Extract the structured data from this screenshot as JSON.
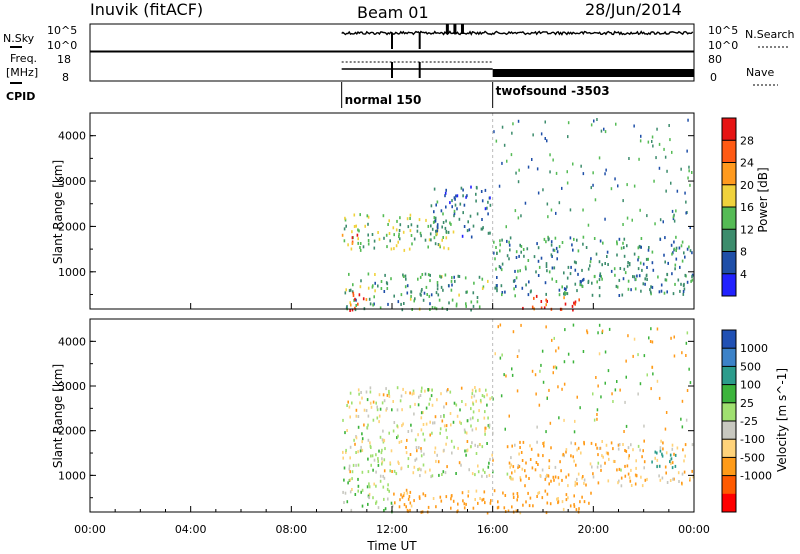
{
  "header": {
    "site": "Inuvik (fitACF)",
    "beam": "Beam 01",
    "date": "28/Jun/2014"
  },
  "top_panels": {
    "nsky_label": "N.Sky",
    "nsky_ticks": [
      "10^5",
      "10^0"
    ],
    "nsearch_label": "N.Search",
    "nsearch_ticks": [
      "10^5",
      "10^0"
    ],
    "freq_label": "Freq.",
    "freq_unit": "[MHz]",
    "freq_ticks": [
      "18",
      "8"
    ],
    "nave_label": "Nave",
    "nave_ticks": [
      "80",
      "0"
    ],
    "cpid_label": "CPID",
    "cpid_modes": [
      {
        "name": "normal 150",
        "start_hour": 10.0,
        "end_hour": 16.0
      },
      {
        "name": "twofsound -3503",
        "start_hour": 16.0,
        "end_hour": 24.0
      }
    ]
  },
  "colors": {
    "power_scale": [
      "#2222ff",
      "#1f4fa8",
      "#3c8c6c",
      "#55bb55",
      "#f0d23c",
      "#ff9a1e",
      "#ff5a14",
      "#e61414"
    ],
    "velocity_scale": [
      "#ff0000",
      "#ff5a00",
      "#ff9b19",
      "#ffd37a",
      "#c8c8c0",
      "#a0e070",
      "#3cb43c",
      "#2c9c8c",
      "#3c82c8",
      "#2050b4"
    ],
    "ground_scatter": "#b9b9b3"
  },
  "chart_data": [
    {
      "type": "heatmap",
      "title": "Power",
      "xlabel": "",
      "ylabel": "Slant Range [km]",
      "xlim": [
        0,
        24
      ],
      "ylim": [
        180,
        4500
      ],
      "y_ticks": [
        "1000",
        "2000",
        "3000",
        "4000"
      ],
      "colorbar": {
        "label": "Power [dB]",
        "min": 0,
        "max": 32,
        "ticks": [
          "4",
          "8",
          "12",
          "16",
          "20",
          "24",
          "28"
        ]
      },
      "data_start_hour": 10.0,
      "features": [
        {
          "t_start": 10.0,
          "t_end": 14.6,
          "range_low": 1500,
          "range_high": 2300,
          "power": 14
        },
        {
          "t_start": 10.0,
          "t_end": 10.6,
          "range_low": 1550,
          "range_high": 1850,
          "power": 26
        },
        {
          "t_start": 10.1,
          "t_end": 15.8,
          "range_low": 180,
          "range_high": 1000,
          "power": 12
        },
        {
          "t_start": 10.1,
          "t_end": 11.0,
          "range_low": 180,
          "range_high": 600,
          "power": 26
        },
        {
          "t_start": 17.0,
          "t_end": 19.5,
          "range_low": 180,
          "range_high": 500,
          "power": 28
        },
        {
          "t_start": 16.0,
          "t_end": 24.0,
          "range_low": 500,
          "range_high": 1800,
          "power": 10
        },
        {
          "t_start": 13.5,
          "t_end": 15.9,
          "range_low": 1800,
          "range_high": 2900,
          "power": 8
        }
      ]
    },
    {
      "type": "heatmap",
      "title": "Velocity",
      "xlabel": "Time UT",
      "ylabel": "Slant Range [km]",
      "xlim": [
        0,
        24
      ],
      "ylim": [
        180,
        4500
      ],
      "x_ticks": [
        "00:00",
        "04:00",
        "08:00",
        "12:00",
        "16:00",
        "20:00",
        "00:00"
      ],
      "y_ticks": [
        "1000",
        "2000",
        "3000",
        "4000"
      ],
      "colorbar": {
        "label": "Velocity [m s^-1]",
        "ticks": [
          "1000",
          "500",
          "100",
          "25",
          "-25",
          "-100",
          "-500",
          "-1000"
        ]
      },
      "data_start_hour": 10.0,
      "features": [
        {
          "t_start": 10.0,
          "t_end": 16.0,
          "range_low": 1000,
          "range_high": 3000,
          "velocity": 0
        },
        {
          "t_start": 10.0,
          "t_end": 12.0,
          "range_low": 180,
          "range_high": 1000,
          "velocity": 60
        },
        {
          "t_start": 16.5,
          "t_end": 24.0,
          "range_low": 800,
          "range_high": 1800,
          "velocity": -100
        },
        {
          "t_start": 22.3,
          "t_end": 23.3,
          "range_low": 1100,
          "range_high": 1600,
          "velocity": 700
        },
        {
          "t_start": 12.0,
          "t_end": 20.0,
          "range_low": 180,
          "range_high": 700,
          "velocity": -200
        }
      ]
    }
  ]
}
